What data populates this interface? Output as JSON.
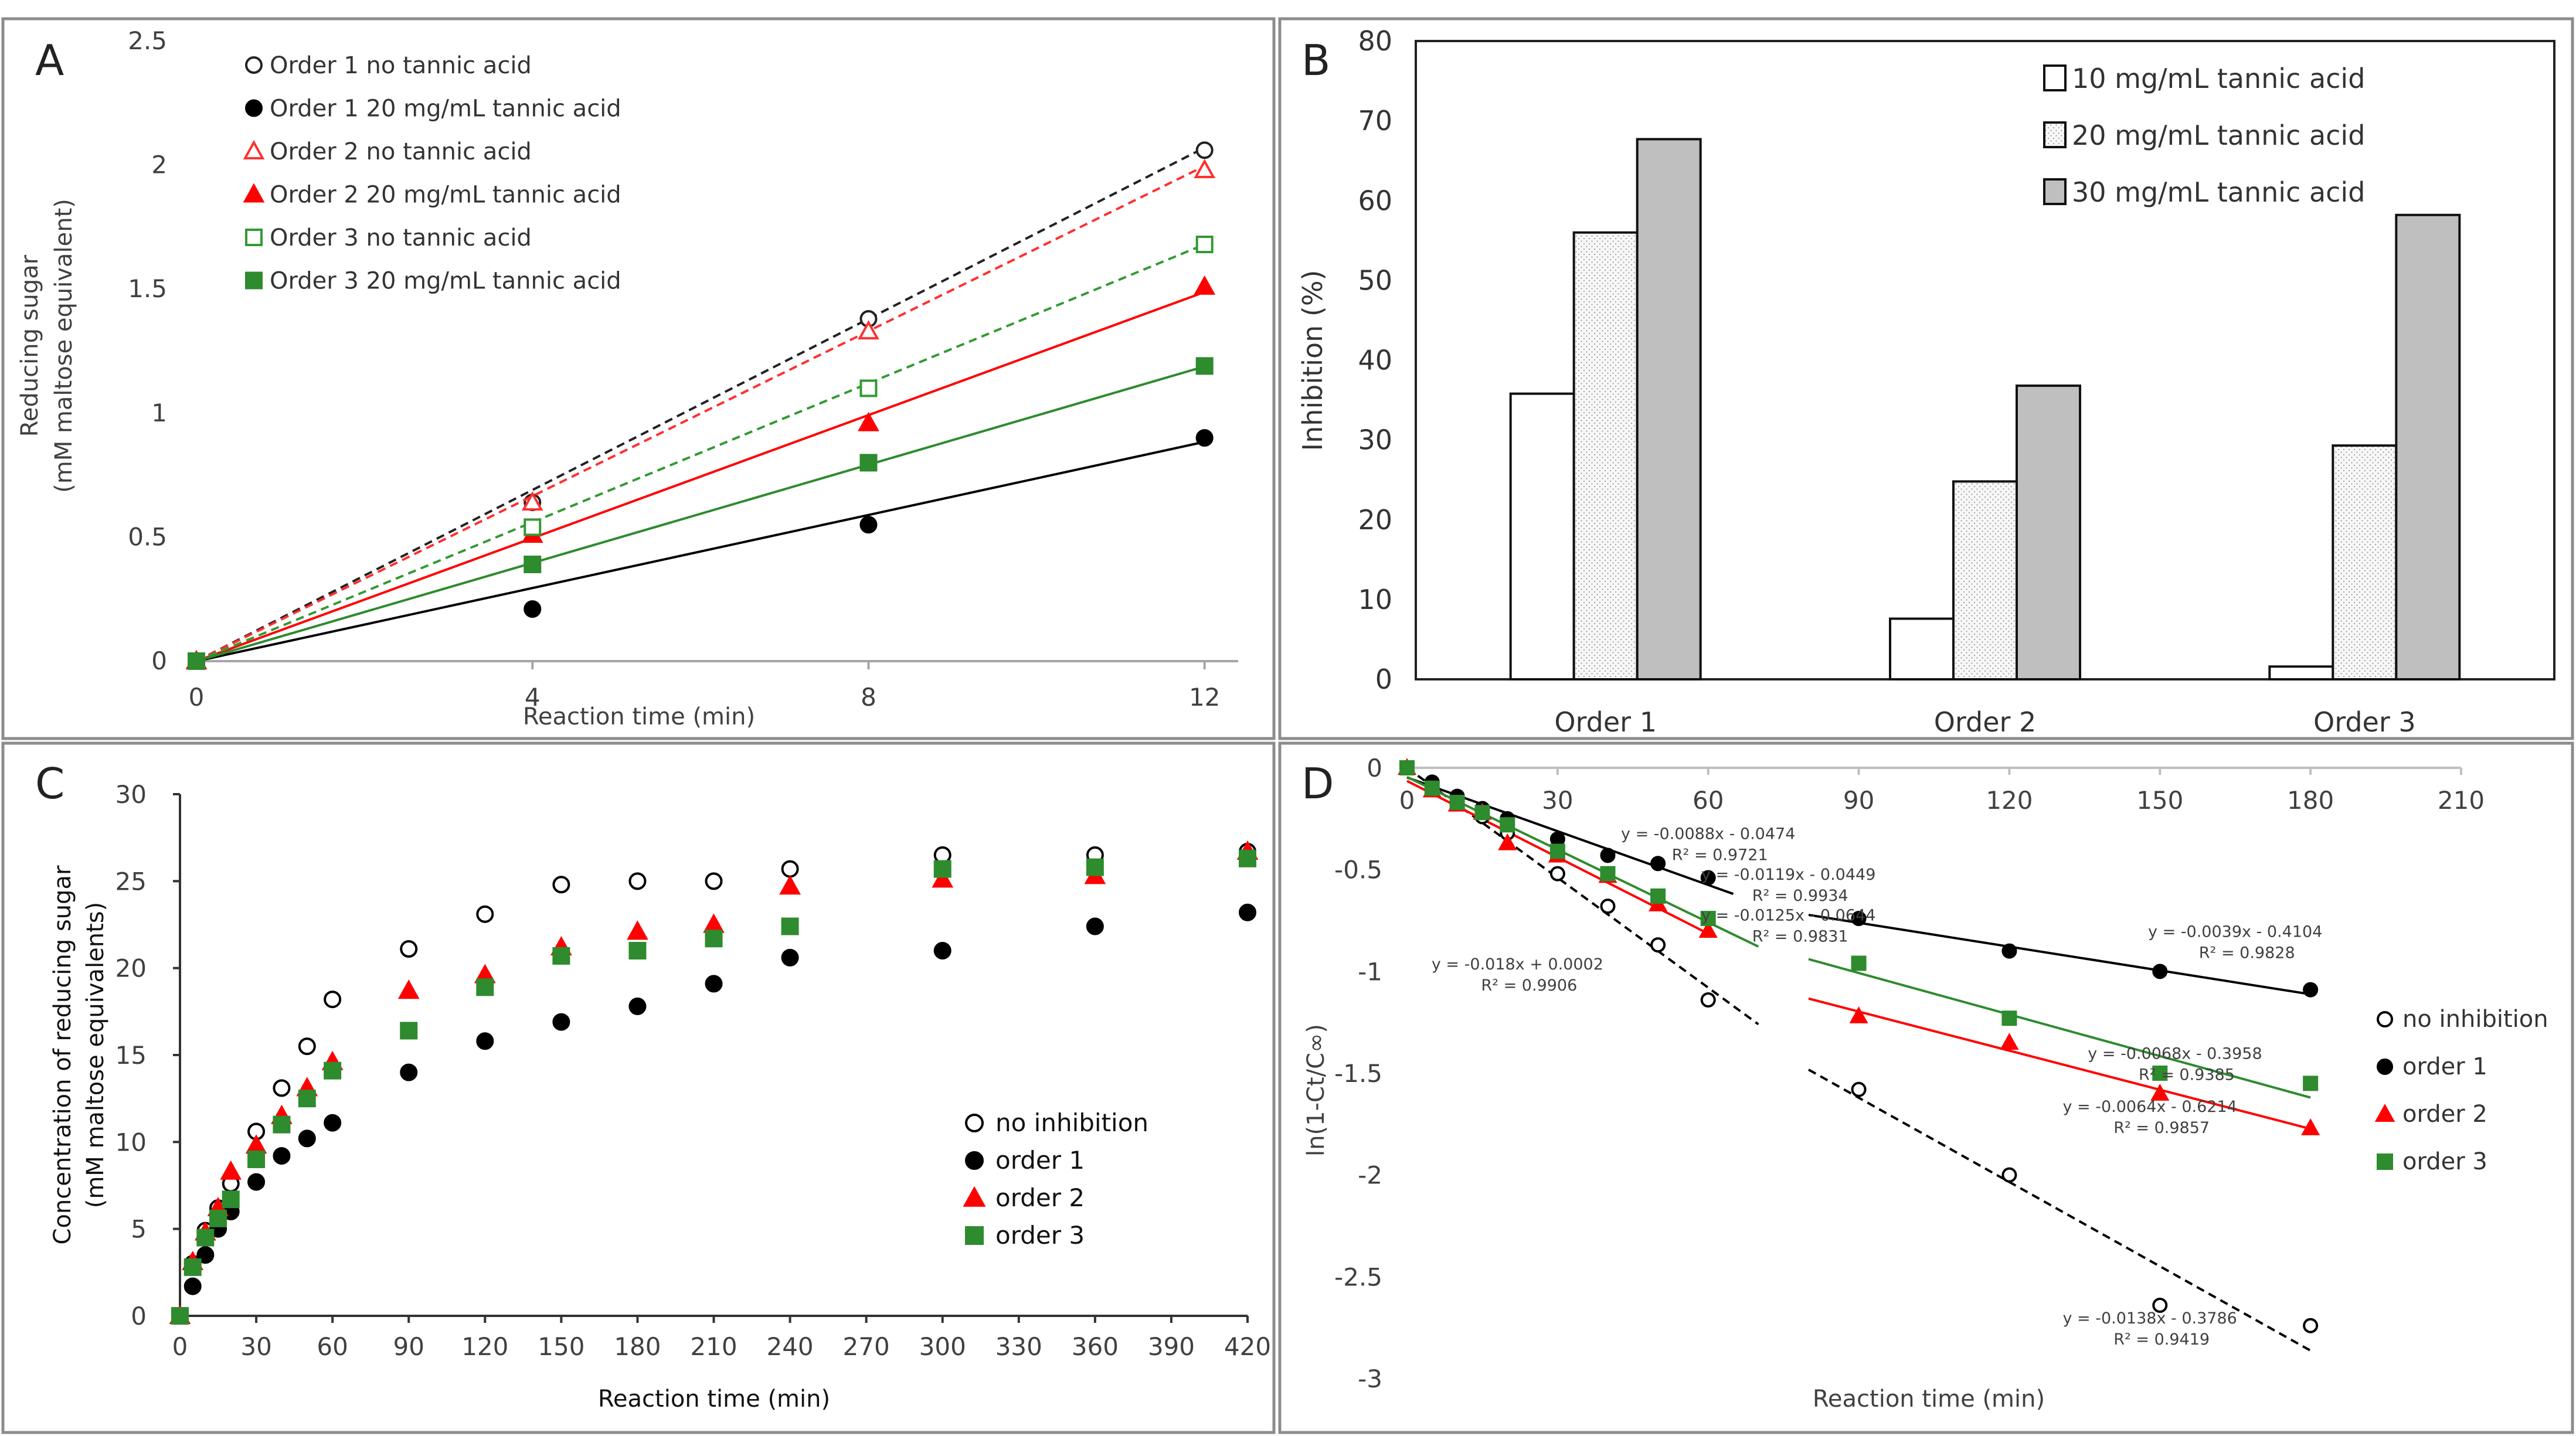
{
  "chart_data": [
    {
      "panel": "A",
      "type": "scatter",
      "xlabel": "Reaction time (min)",
      "ylabel": [
        "Reducing sugar",
        "(mM maltose equivalent)"
      ],
      "xlim": [
        0,
        12.4
      ],
      "ylim": [
        0,
        2.5
      ],
      "xticks": [
        0,
        4,
        8,
        12
      ],
      "xtick_labels": [
        "0",
        "4",
        "8",
        "12"
      ],
      "yticks": [
        0,
        0.5,
        1,
        1.5,
        2,
        2.5
      ],
      "ytick_labels": [
        "0",
        "0.5",
        "1",
        "1.5",
        "2",
        "2.5"
      ],
      "series": [
        {
          "name": "Order 1 no tannic acid",
          "x": [
            0,
            4,
            8,
            12
          ],
          "y": [
            0,
            0.64,
            1.38,
            2.06
          ],
          "marker": "circle",
          "filled": false,
          "color": "#222222",
          "line": "dashed",
          "fit": [
            0.175,
            -0.03
          ]
        },
        {
          "name": "Order 1 20 mg/mL tannic acid",
          "x": [
            0,
            4,
            8,
            12
          ],
          "y": [
            0,
            0.21,
            0.55,
            0.9
          ],
          "marker": "circle",
          "filled": true,
          "color": "#000000",
          "line": "solid",
          "fit": [
            0.077,
            -0.04
          ]
        },
        {
          "name": "Order 2 no tannic acid",
          "x": [
            0,
            4,
            8,
            12
          ],
          "y": [
            0,
            0.64,
            1.33,
            1.98
          ],
          "marker": "triangle",
          "filled": false,
          "color": "#ff3030",
          "line": "dashed",
          "fit": [
            0.168,
            -0.02
          ]
        },
        {
          "name": "Order 2 20 mg/mL tannic acid",
          "x": [
            0,
            4,
            8,
            12
          ],
          "y": [
            0,
            0.51,
            0.96,
            1.51
          ],
          "marker": "triangle",
          "filled": true,
          "color": "#ff0000",
          "line": "solid",
          "fit": [
            0.124,
            0.0
          ]
        },
        {
          "name": "Order 3 no tannic acid",
          "x": [
            0,
            4,
            8,
            12
          ],
          "y": [
            0,
            0.54,
            1.1,
            1.68
          ],
          "marker": "square",
          "filled": false,
          "color": "#339933",
          "line": "dashed",
          "fit": [
            0.14,
            0.0
          ]
        },
        {
          "name": "Order 3 20 mg/mL tannic acid",
          "x": [
            0,
            4,
            8,
            12
          ],
          "y": [
            0,
            0.39,
            0.8,
            1.19
          ],
          "marker": "square",
          "filled": true,
          "color": "#2e8b2e",
          "line": "solid",
          "fit": [
            0.099,
            0.0
          ]
        }
      ]
    },
    {
      "panel": "B",
      "type": "bar",
      "ylabel": "Inhibition (%)",
      "ylim": [
        0,
        80
      ],
      "yticks": [
        0,
        10,
        20,
        30,
        40,
        50,
        60,
        70,
        80
      ],
      "ytick_labels": [
        "0",
        "10",
        "20",
        "30",
        "40",
        "50",
        "60",
        "70",
        "80"
      ],
      "categories": [
        "Order 1",
        "Order 2",
        "Order 3"
      ],
      "series": [
        {
          "name": "10 mg/mL tannic acid",
          "values": [
            35.8,
            7.6,
            1.6
          ],
          "fill": "white"
        },
        {
          "name": "20 mg/mL tannic acid",
          "values": [
            56.0,
            24.8,
            29.3
          ],
          "fill": "dots"
        },
        {
          "name": "30 mg/mL tannic acid",
          "values": [
            67.7,
            36.8,
            58.2
          ],
          "fill": "gray"
        }
      ]
    },
    {
      "panel": "C",
      "type": "scatter",
      "xlabel": "Reaction time (min)",
      "ylabel": [
        "Concentration of reducing sugar",
        "(mM maltose equivalents)"
      ],
      "xlim": [
        0,
        420
      ],
      "ylim": [
        0,
        30
      ],
      "xticks": [
        0,
        30,
        60,
        90,
        120,
        150,
        180,
        210,
        240,
        270,
        300,
        330,
        360,
        390,
        420
      ],
      "xtick_labels": [
        "0",
        "30",
        "60",
        "90",
        "120",
        "150",
        "180",
        "210",
        "240",
        "270",
        "300",
        "330",
        "360",
        "390",
        "420"
      ],
      "yticks": [
        0,
        5,
        10,
        15,
        20,
        25,
        30
      ],
      "ytick_labels": [
        "0",
        "5",
        "10",
        "15",
        "20",
        "25",
        "30"
      ],
      "x": [
        0,
        5,
        10,
        15,
        20,
        30,
        40,
        50,
        60,
        90,
        120,
        150,
        180,
        210,
        240,
        300,
        360,
        420
      ],
      "series": [
        {
          "name": "no inhibition",
          "marker": "circle",
          "filled": false,
          "color": "#000000",
          "values": [
            0,
            3.0,
            4.9,
            6.2,
            7.6,
            10.6,
            13.1,
            15.5,
            18.2,
            21.1,
            23.1,
            24.8,
            25.0,
            25.0,
            25.7,
            26.5,
            26.5,
            26.7
          ]
        },
        {
          "name": "order 1",
          "marker": "circle",
          "filled": true,
          "color": "#000000",
          "values": [
            0,
            1.7,
            3.5,
            5.0,
            6.0,
            7.7,
            9.2,
            10.2,
            11.1,
            14.0,
            15.8,
            16.9,
            17.8,
            19.1,
            20.6,
            21.0,
            22.4,
            23.2
          ]
        },
        {
          "name": "order 2",
          "marker": "triangle",
          "filled": true,
          "color": "#ff0000",
          "values": [
            0,
            3.1,
            4.8,
            6.2,
            8.3,
            9.8,
            11.5,
            13.1,
            14.6,
            18.7,
            19.6,
            21.2,
            22.1,
            22.5,
            24.7,
            25.1,
            25.3,
            26.7
          ]
        },
        {
          "name": "order 3",
          "marker": "square",
          "filled": true,
          "color": "#2e8b2e",
          "values": [
            0,
            2.8,
            4.5,
            5.6,
            6.7,
            9.0,
            11.0,
            12.5,
            14.1,
            16.4,
            18.9,
            20.7,
            21.0,
            21.7,
            22.4,
            25.7,
            25.8,
            26.3
          ]
        }
      ]
    },
    {
      "panel": "D",
      "type": "scatter",
      "xlabel": "Reaction time (min)",
      "ylabel": "ln(1-Ct/C∞)",
      "xlim": [
        0,
        210
      ],
      "ylim": [
        -3,
        0
      ],
      "xticks": [
        0,
        30,
        60,
        90,
        120,
        150,
        180,
        210
      ],
      "xtick_labels": [
        "0",
        "30",
        "60",
        "90",
        "120",
        "150",
        "180",
        "210"
      ],
      "yticks": [
        0,
        -0.5,
        -1,
        -1.5,
        -2,
        -2.5,
        -3
      ],
      "ytick_labels": [
        "0",
        "-0.5",
        "-1",
        "-1.5",
        "-2",
        "-2.5",
        "-3"
      ],
      "series": [
        {
          "name": "no inhibition",
          "marker": "circle",
          "filled": false,
          "color": "#000000",
          "x": [
            0,
            5,
            10,
            15,
            20,
            30,
            40,
            50,
            60,
            90,
            120,
            150,
            180
          ],
          "y": [
            0,
            -0.1,
            -0.17,
            -0.24,
            -0.32,
            -0.52,
            -0.68,
            -0.87,
            -1.14,
            -1.58,
            -2.0,
            -2.64,
            -2.74
          ]
        },
        {
          "name": "order 1",
          "marker": "circle",
          "filled": true,
          "color": "#000000",
          "x": [
            0,
            5,
            10,
            15,
            20,
            30,
            40,
            50,
            60,
            90,
            120,
            150,
            180
          ],
          "y": [
            0,
            -0.07,
            -0.14,
            -0.2,
            -0.25,
            -0.35,
            -0.43,
            -0.47,
            -0.54,
            -0.74,
            -0.9,
            -1.0,
            -1.09
          ]
        },
        {
          "name": "order 2",
          "marker": "triangle",
          "filled": true,
          "color": "#ff0000",
          "x": [
            0,
            5,
            10,
            15,
            20,
            30,
            40,
            50,
            60,
            90,
            120,
            150,
            180
          ],
          "y": [
            0,
            -0.11,
            -0.18,
            -0.22,
            -0.37,
            -0.43,
            -0.53,
            -0.67,
            -0.8,
            -1.22,
            -1.35,
            -1.6,
            -1.77
          ]
        },
        {
          "name": "order 3",
          "marker": "square",
          "filled": true,
          "color": "#2e8b2e",
          "x": [
            0,
            5,
            10,
            15,
            20,
            30,
            40,
            50,
            60,
            90,
            120,
            150,
            180
          ],
          "y": [
            0,
            -0.1,
            -0.17,
            -0.22,
            -0.28,
            -0.41,
            -0.52,
            -0.63,
            -0.74,
            -0.96,
            -1.23,
            -1.5,
            -1.55
          ]
        }
      ],
      "fits": [
        {
          "color": "#000000",
          "dash": true,
          "slope": -0.018,
          "intercept": 0.0002,
          "x0": 0,
          "x1": 70
        },
        {
          "color": "#000000",
          "dash": true,
          "slope": -0.0138,
          "intercept": -0.3786,
          "x0": 80,
          "x1": 180
        },
        {
          "color": "#000000",
          "dash": false,
          "slope": -0.0088,
          "intercept": -0.0474,
          "x0": 0,
          "x1": 65
        },
        {
          "color": "#000000",
          "dash": false,
          "slope": -0.0039,
          "intercept": -0.4104,
          "x0": 80,
          "x1": 180
        },
        {
          "color": "#ff0000",
          "dash": false,
          "slope": -0.0125,
          "intercept": -0.0644,
          "x0": 0,
          "x1": 60
        },
        {
          "color": "#ff0000",
          "dash": false,
          "slope": -0.0064,
          "intercept": -0.6214,
          "x0": 80,
          "x1": 180
        },
        {
          "color": "#2e8b2e",
          "dash": false,
          "slope": -0.0119,
          "intercept": -0.0449,
          "x0": 0,
          "x1": 70
        },
        {
          "color": "#2e8b2e",
          "dash": false,
          "slope": -0.0068,
          "intercept": -0.3958,
          "x0": 80,
          "x1": 180
        }
      ],
      "equations": [
        {
          "eq": "y = -0.0088x - 0.0474",
          "r2": "R² = 0.9721",
          "ax": 60,
          "ay": -0.35
        },
        {
          "eq": "y = -0.0119x - 0.0449",
          "r2": "R² = 0.9934",
          "ax": 76,
          "ay": -0.55
        },
        {
          "eq": "y = -0.0125x - 0.0644",
          "r2": "R² = 0.9831",
          "ax": 76,
          "ay": -0.75
        },
        {
          "eq": "y = -0.018x + 0.0002",
          "r2": "R² = 0.9906",
          "ax": 22,
          "ay": -0.99
        },
        {
          "eq": "y = -0.0039x - 0.4104",
          "r2": "R² = 0.9828",
          "ax": 165,
          "ay": -0.83
        },
        {
          "eq": "y = -0.0068x - 0.3958",
          "r2": "R² = 0.9385",
          "ax": 153,
          "ay": -1.43
        },
        {
          "eq": "y = -0.0064x - 0.6214",
          "r2": "R² = 0.9857",
          "ax": 148,
          "ay": -1.69
        },
        {
          "eq": "y = -0.0138x - 0.3786",
          "r2": "R² = 0.9419",
          "ax": 148,
          "ay": -2.73
        }
      ]
    }
  ]
}
